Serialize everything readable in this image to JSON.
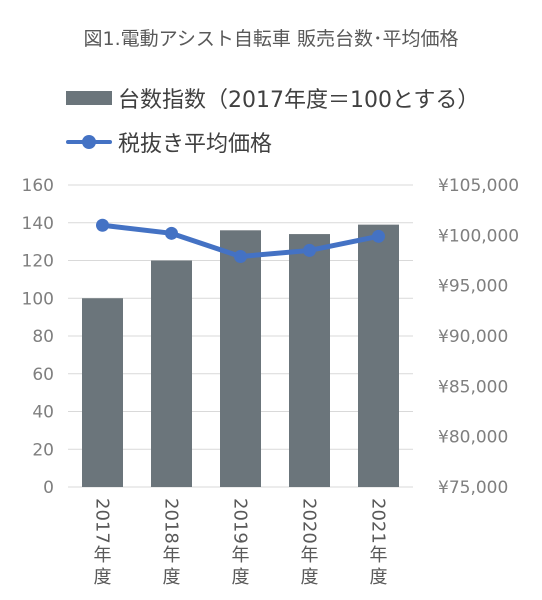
{
  "chart_data": {
    "type": "bar",
    "title": "図1.電動アシスト自転車 販売台数･平均価格",
    "categories": [
      "2017年度",
      "2018年度",
      "2019年度",
      "2020年度",
      "2021年度"
    ],
    "series": [
      {
        "name": "台数指数（2017年度＝100とする）",
        "type": "bar",
        "axis": "left",
        "color": "#6b757b",
        "values": [
          100,
          120,
          136,
          134,
          139
        ]
      },
      {
        "name": "税抜き平均価格",
        "type": "line",
        "axis": "right",
        "color": "#4472c4",
        "values": [
          101000,
          100200,
          97900,
          98500,
          99900
        ]
      }
    ],
    "y_left": {
      "ylim": [
        0,
        160
      ],
      "ticks": [
        0,
        20,
        40,
        60,
        80,
        100,
        120,
        140,
        160
      ]
    },
    "y_right": {
      "ylim": [
        75000,
        105000
      ],
      "ticks": [
        75000,
        80000,
        85000,
        90000,
        95000,
        100000,
        105000
      ],
      "tick_labels": [
        "¥75,000",
        "¥80,000",
        "¥85,000",
        "¥90,000",
        "¥95,000",
        "¥100,000",
        "¥105,000"
      ]
    },
    "grid": true,
    "legend_position": "top-left"
  }
}
